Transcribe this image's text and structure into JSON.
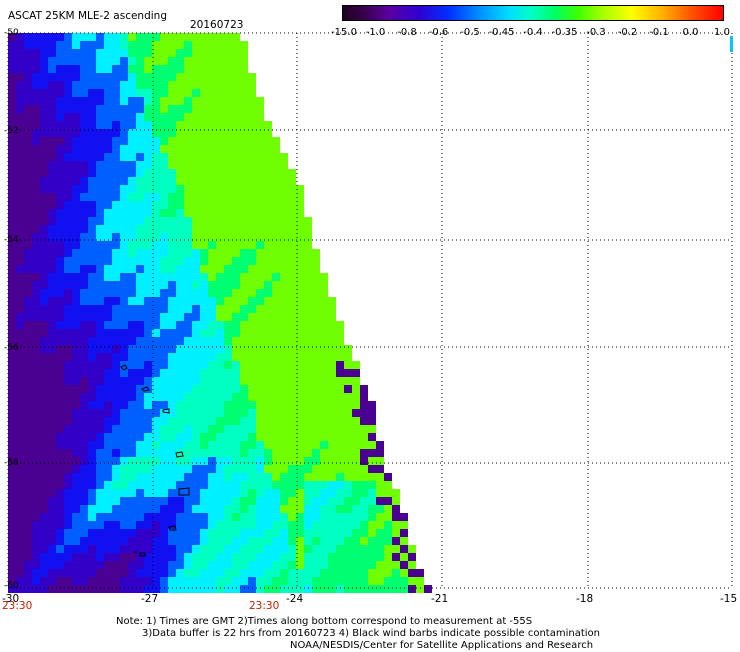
{
  "header": {
    "title": "ASCAT 25KM MLE-2 ascending",
    "date": "20160723"
  },
  "colorbar": {
    "labels": [
      "-15.0",
      "-1.0",
      "-0.8",
      "-0.6",
      "-0.5",
      "-0.45",
      "-0.4",
      "-0.35",
      "-0.3",
      "-0.2",
      "-0.1",
      "0.0",
      "1.0"
    ]
  },
  "axes": {
    "lat_labels": [
      "-50",
      "-52",
      "-54",
      "-56",
      "-58",
      "-60"
    ],
    "lon_labels": [
      "-30",
      "-27",
      "-24",
      "-21",
      "-18",
      "-15"
    ],
    "time_labels": [
      "23:30",
      "23:30"
    ]
  },
  "notes": {
    "line1": "Note: 1) Times are GMT 2)Times along bottom correspond to measurement at -55S",
    "line2": "3)Data buffer is 22 hrs from 20160723 4) Black wind barbs indicate possible contamination",
    "line3": "NOAA/NESDIS/Center for Satellite Applications and Research"
  },
  "colors": {
    "deep_purple": "#4a0090",
    "blue": "#1010f0",
    "cyan": "#00f0ff",
    "green": "#00ff70",
    "lime": "#70ff00"
  }
}
